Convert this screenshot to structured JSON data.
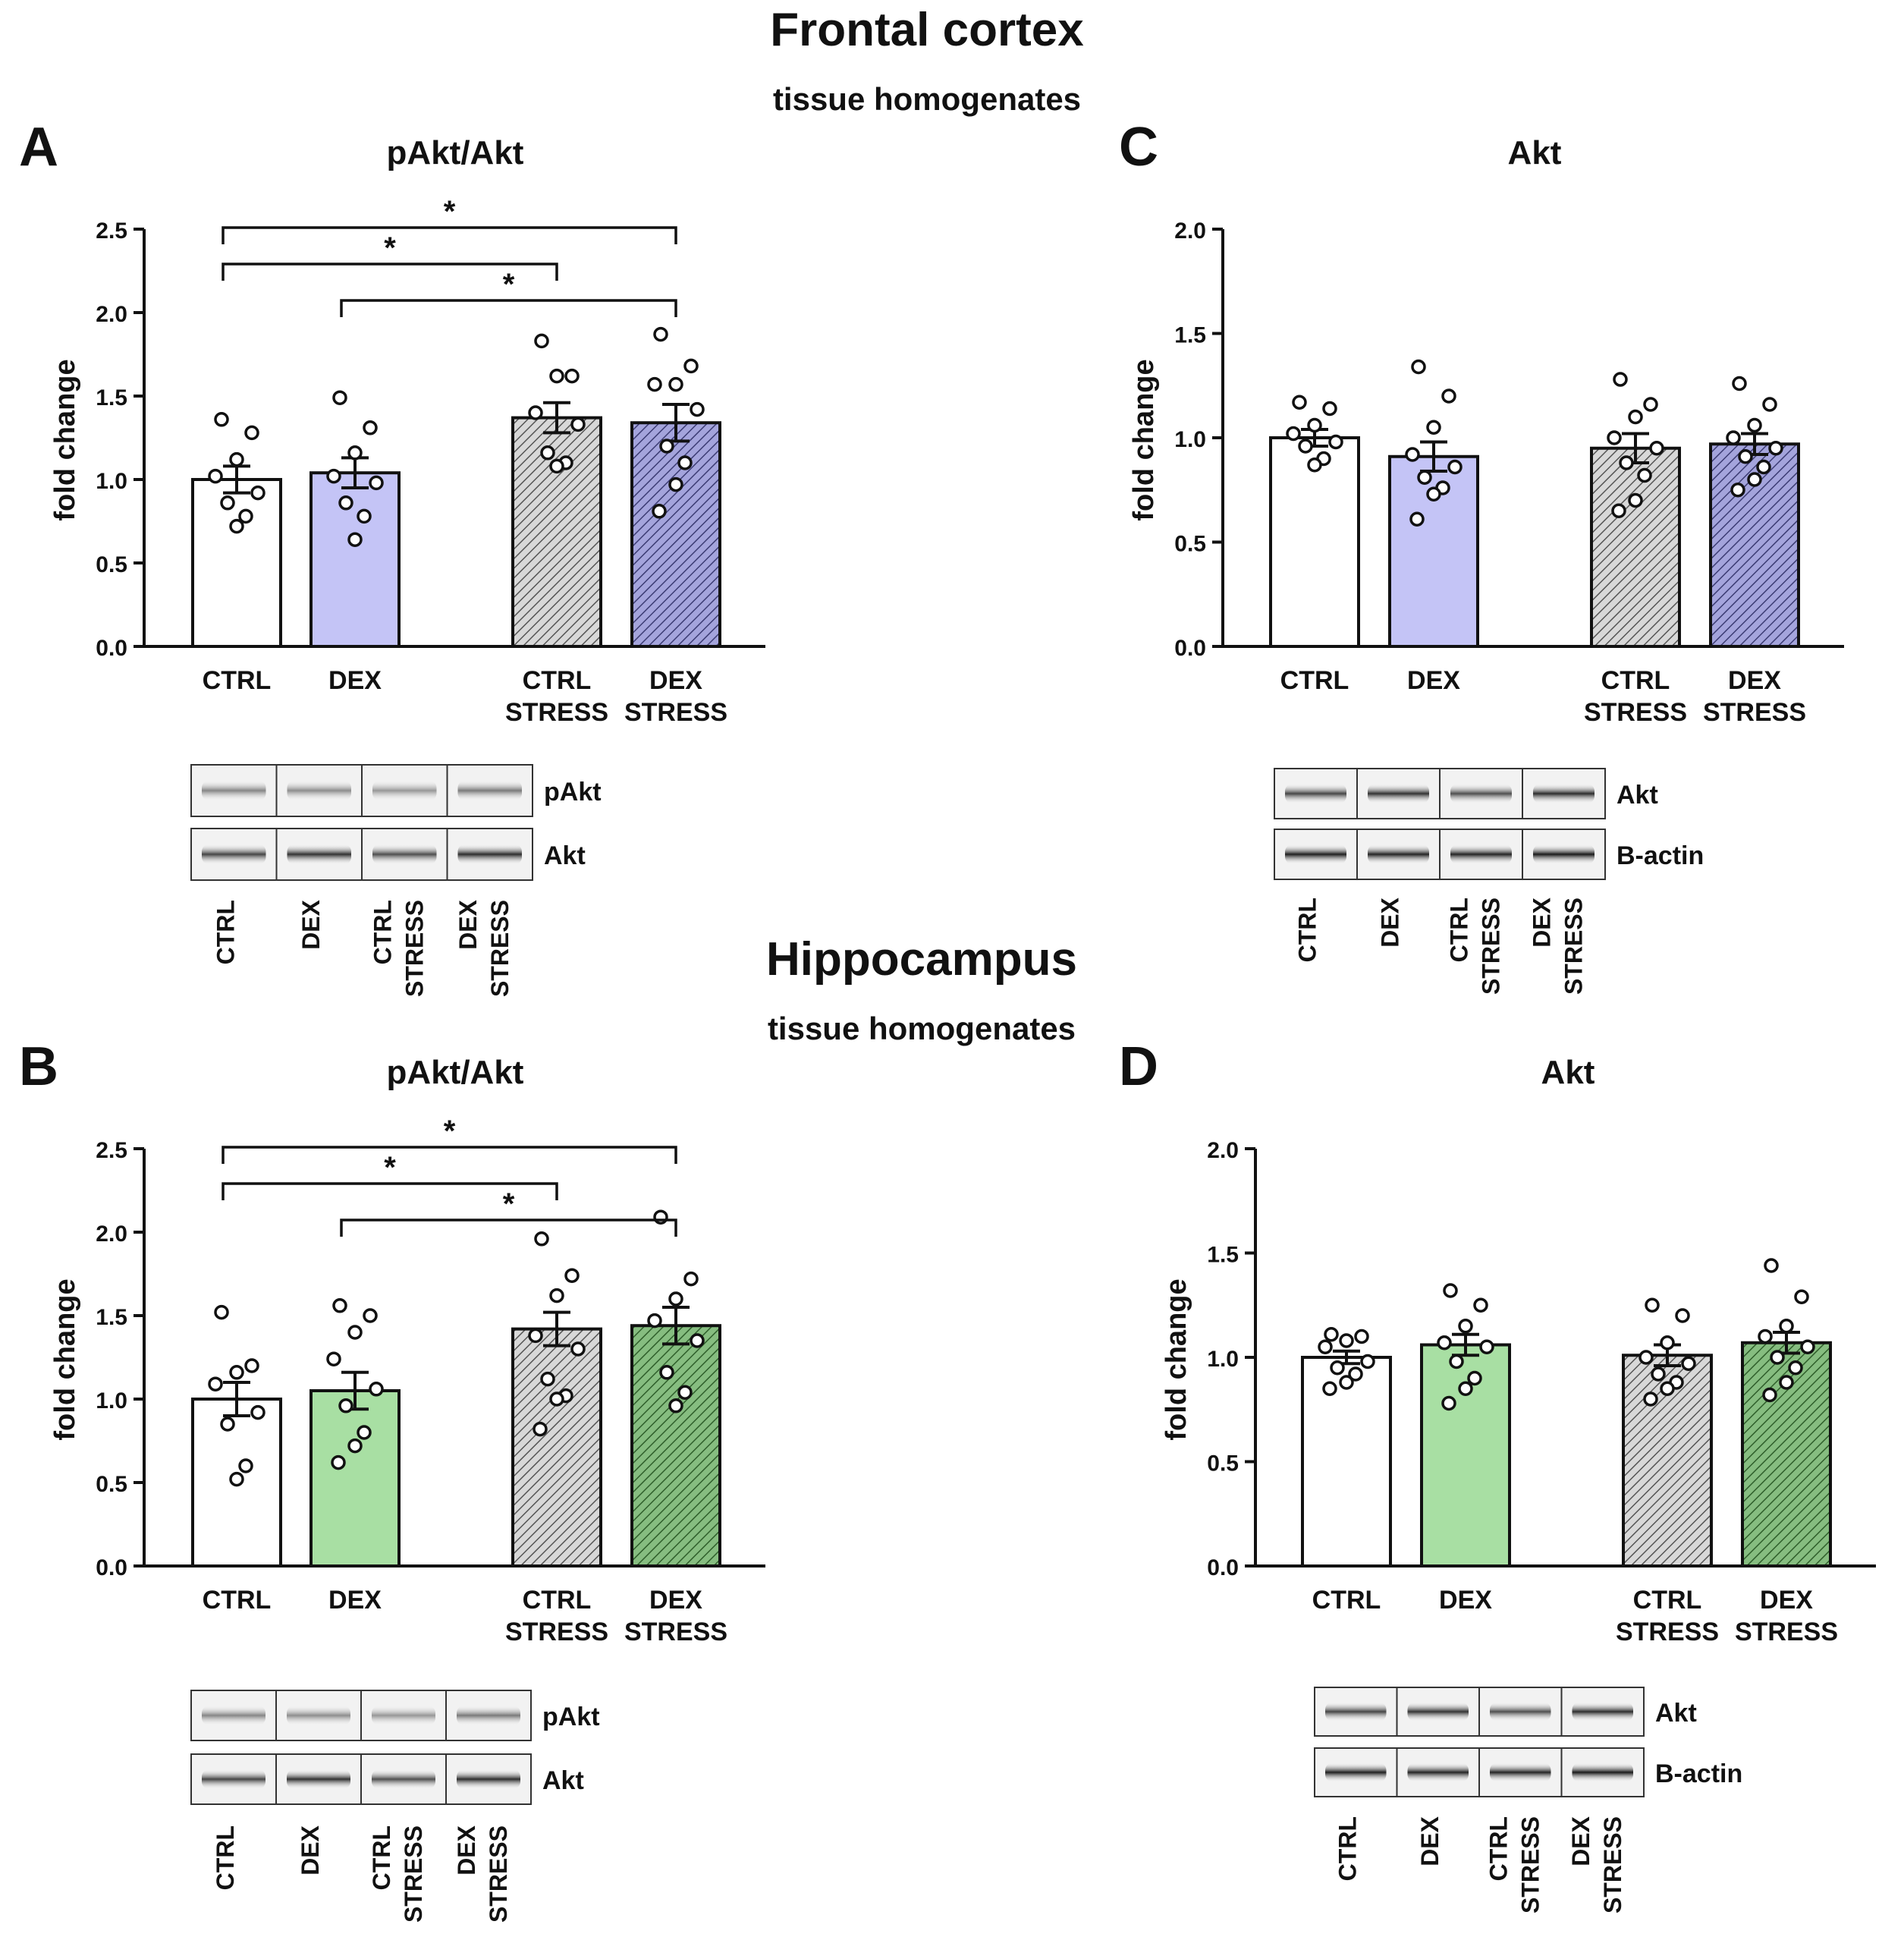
{
  "sections": [
    {
      "title": "Frontal cortex",
      "subtitle": "tissue homogenates"
    },
    {
      "title": "Hippocampus",
      "subtitle": "tissue homogenates"
    }
  ],
  "colors": {
    "ctrl": "#ffffff",
    "ctrl_stress": "#d8d8d8",
    "frontal_dex": "#c4c4f6",
    "frontal_dex_stress": "#9a9ad6",
    "hippo_dex": "#a8dfa3",
    "hippo_dex_stress": "#78b273",
    "outline": "#111111"
  },
  "group_labels": [
    [
      "CTRL"
    ],
    [
      "DEX"
    ],
    [
      "CTRL",
      "STRESS"
    ],
    [
      "DEX",
      "STRESS"
    ]
  ],
  "chart_data": [
    {
      "panel": "A",
      "type": "bar",
      "title": "pAkt/Akt",
      "ylabel": "fold change",
      "ylim": [
        0,
        2.5
      ],
      "yticks": [
        "0.0",
        "0.5",
        "1.0",
        "1.5",
        "2.0",
        "2.5"
      ],
      "categories": [
        "CTRL",
        "DEX",
        "CTRL STRESS",
        "DEX STRESS"
      ],
      "values": [
        1.0,
        1.04,
        1.37,
        1.34
      ],
      "sem": [
        0.08,
        0.09,
        0.09,
        0.11
      ],
      "points": [
        [
          1.36,
          1.28,
          1.12,
          1.02,
          0.92,
          0.86,
          0.78,
          0.72
        ],
        [
          1.49,
          1.31,
          1.16,
          1.02,
          0.98,
          0.86,
          0.78,
          0.64
        ],
        [
          1.83,
          1.62,
          1.62,
          1.4,
          1.33,
          1.16,
          1.1,
          1.08
        ],
        [
          1.87,
          1.68,
          1.57,
          1.57,
          1.42,
          1.2,
          1.1,
          0.97,
          0.81
        ]
      ],
      "significance": [
        {
          "from": 0,
          "to": 3,
          "label": "*"
        },
        {
          "from": 0,
          "to": 2,
          "label": "*"
        },
        {
          "from": 1,
          "to": 3,
          "label": "*"
        }
      ],
      "blot": {
        "rows": [
          "pAkt",
          "Akt"
        ],
        "lanes": [
          "CTRL",
          "DEX",
          "CTRL STRESS",
          "DEX STRESS"
        ]
      }
    },
    {
      "panel": "C",
      "type": "bar",
      "title": "Akt",
      "ylabel": "fold change",
      "ylim": [
        0,
        2.0
      ],
      "yticks": [
        "0.0",
        "0.5",
        "1.0",
        "1.5",
        "2.0"
      ],
      "categories": [
        "CTRL",
        "DEX",
        "CTRL STRESS",
        "DEX STRESS"
      ],
      "values": [
        1.0,
        0.91,
        0.95,
        0.97
      ],
      "sem": [
        0.04,
        0.07,
        0.07,
        0.05
      ],
      "points": [
        [
          1.17,
          1.14,
          1.06,
          1.02,
          0.98,
          0.96,
          0.9,
          0.87
        ],
        [
          1.34,
          1.2,
          1.05,
          0.92,
          0.86,
          0.81,
          0.76,
          0.73,
          0.61
        ],
        [
          1.28,
          1.16,
          1.1,
          1.0,
          0.95,
          0.88,
          0.82,
          0.7,
          0.65
        ],
        [
          1.26,
          1.16,
          1.06,
          1.0,
          0.95,
          0.91,
          0.86,
          0.8,
          0.75
        ]
      ],
      "significance": [],
      "blot": {
        "rows": [
          "Akt",
          "B-actin"
        ],
        "lanes": [
          "CTRL",
          "DEX",
          "CTRL STRESS",
          "DEX STRESS"
        ]
      }
    },
    {
      "panel": "B",
      "type": "bar",
      "title": "pAkt/Akt",
      "ylabel": "fold change",
      "ylim": [
        0,
        2.5
      ],
      "yticks": [
        "0.0",
        "0.5",
        "1.0",
        "1.5",
        "2.0",
        "2.5"
      ],
      "categories": [
        "CTRL",
        "DEX",
        "CTRL STRESS",
        "DEX STRESS"
      ],
      "values": [
        1.0,
        1.05,
        1.42,
        1.44
      ],
      "sem": [
        0.1,
        0.11,
        0.1,
        0.11
      ],
      "points": [
        [
          1.52,
          1.2,
          1.16,
          1.09,
          0.92,
          0.85,
          0.6,
          0.52
        ],
        [
          1.56,
          1.5,
          1.4,
          1.24,
          1.06,
          0.96,
          0.8,
          0.72,
          0.62
        ],
        [
          1.96,
          1.74,
          1.62,
          1.38,
          1.3,
          1.12,
          1.02,
          1.0,
          0.82
        ],
        [
          2.09,
          1.72,
          1.6,
          1.47,
          1.35,
          1.16,
          1.04,
          0.96
        ]
      ],
      "significance": [
        {
          "from": 0,
          "to": 3,
          "label": "*"
        },
        {
          "from": 0,
          "to": 2,
          "label": "*"
        },
        {
          "from": 1,
          "to": 3,
          "label": "*"
        }
      ],
      "blot": {
        "rows": [
          "pAkt",
          "Akt"
        ],
        "lanes": [
          "CTRL",
          "DEX",
          "CTRL STRESS",
          "DEX STRESS"
        ]
      }
    },
    {
      "panel": "D",
      "type": "bar",
      "title": "Akt",
      "ylabel": "fold change",
      "ylim": [
        0,
        2.0
      ],
      "yticks": [
        "0.0",
        "0.5",
        "1.0",
        "1.5",
        "2.0"
      ],
      "categories": [
        "CTRL",
        "DEX",
        "CTRL STRESS",
        "DEX STRESS"
      ],
      "values": [
        1.0,
        1.06,
        1.01,
        1.07
      ],
      "sem": [
        0.03,
        0.05,
        0.05,
        0.05
      ],
      "points": [
        [
          1.11,
          1.1,
          1.08,
          1.05,
          0.98,
          0.95,
          0.92,
          0.88,
          0.85
        ],
        [
          1.32,
          1.25,
          1.15,
          1.07,
          1.05,
          0.98,
          0.9,
          0.85,
          0.78
        ],
        [
          1.25,
          1.2,
          1.07,
          1.0,
          0.97,
          0.92,
          0.88,
          0.85,
          0.8
        ],
        [
          1.44,
          1.29,
          1.15,
          1.1,
          1.05,
          1.0,
          0.95,
          0.88,
          0.82
        ]
      ],
      "significance": [],
      "blot": {
        "rows": [
          "Akt",
          "B-actin"
        ],
        "lanes": [
          "CTRL",
          "DEX",
          "CTRL STRESS",
          "DEX STRESS"
        ]
      }
    }
  ]
}
